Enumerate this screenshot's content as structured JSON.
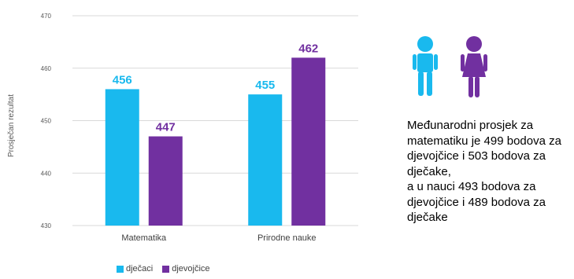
{
  "colors": {
    "boys": "#19b9ee",
    "girls": "#7130a0",
    "grid": "#d9d9d9",
    "axis_text": "#595959"
  },
  "icons": [
    "boy-icon",
    "girl-icon"
  ],
  "note": "Međunarodni prosjek za\nmatematiku je 499 bodova za\ndjevojčice i 503 bodova za\ndječake,\na u nauci 493 bodova za\ndjevojčice i 489 bodova za\ndječake",
  "chart_data": {
    "type": "bar",
    "categories": [
      "Matematika",
      "Prirodne nauke"
    ],
    "series": [
      {
        "name": "dječaci",
        "values": [
          456,
          455
        ],
        "color": "#19b9ee"
      },
      {
        "name": "djevojčice",
        "values": [
          447,
          462
        ],
        "color": "#7130a0"
      }
    ],
    "ylabel": "Prosječan rezultat",
    "ylim": [
      430,
      470
    ],
    "yticks": [
      430,
      440,
      450,
      460,
      470
    ],
    "grid": true,
    "legend_position": "bottom"
  }
}
